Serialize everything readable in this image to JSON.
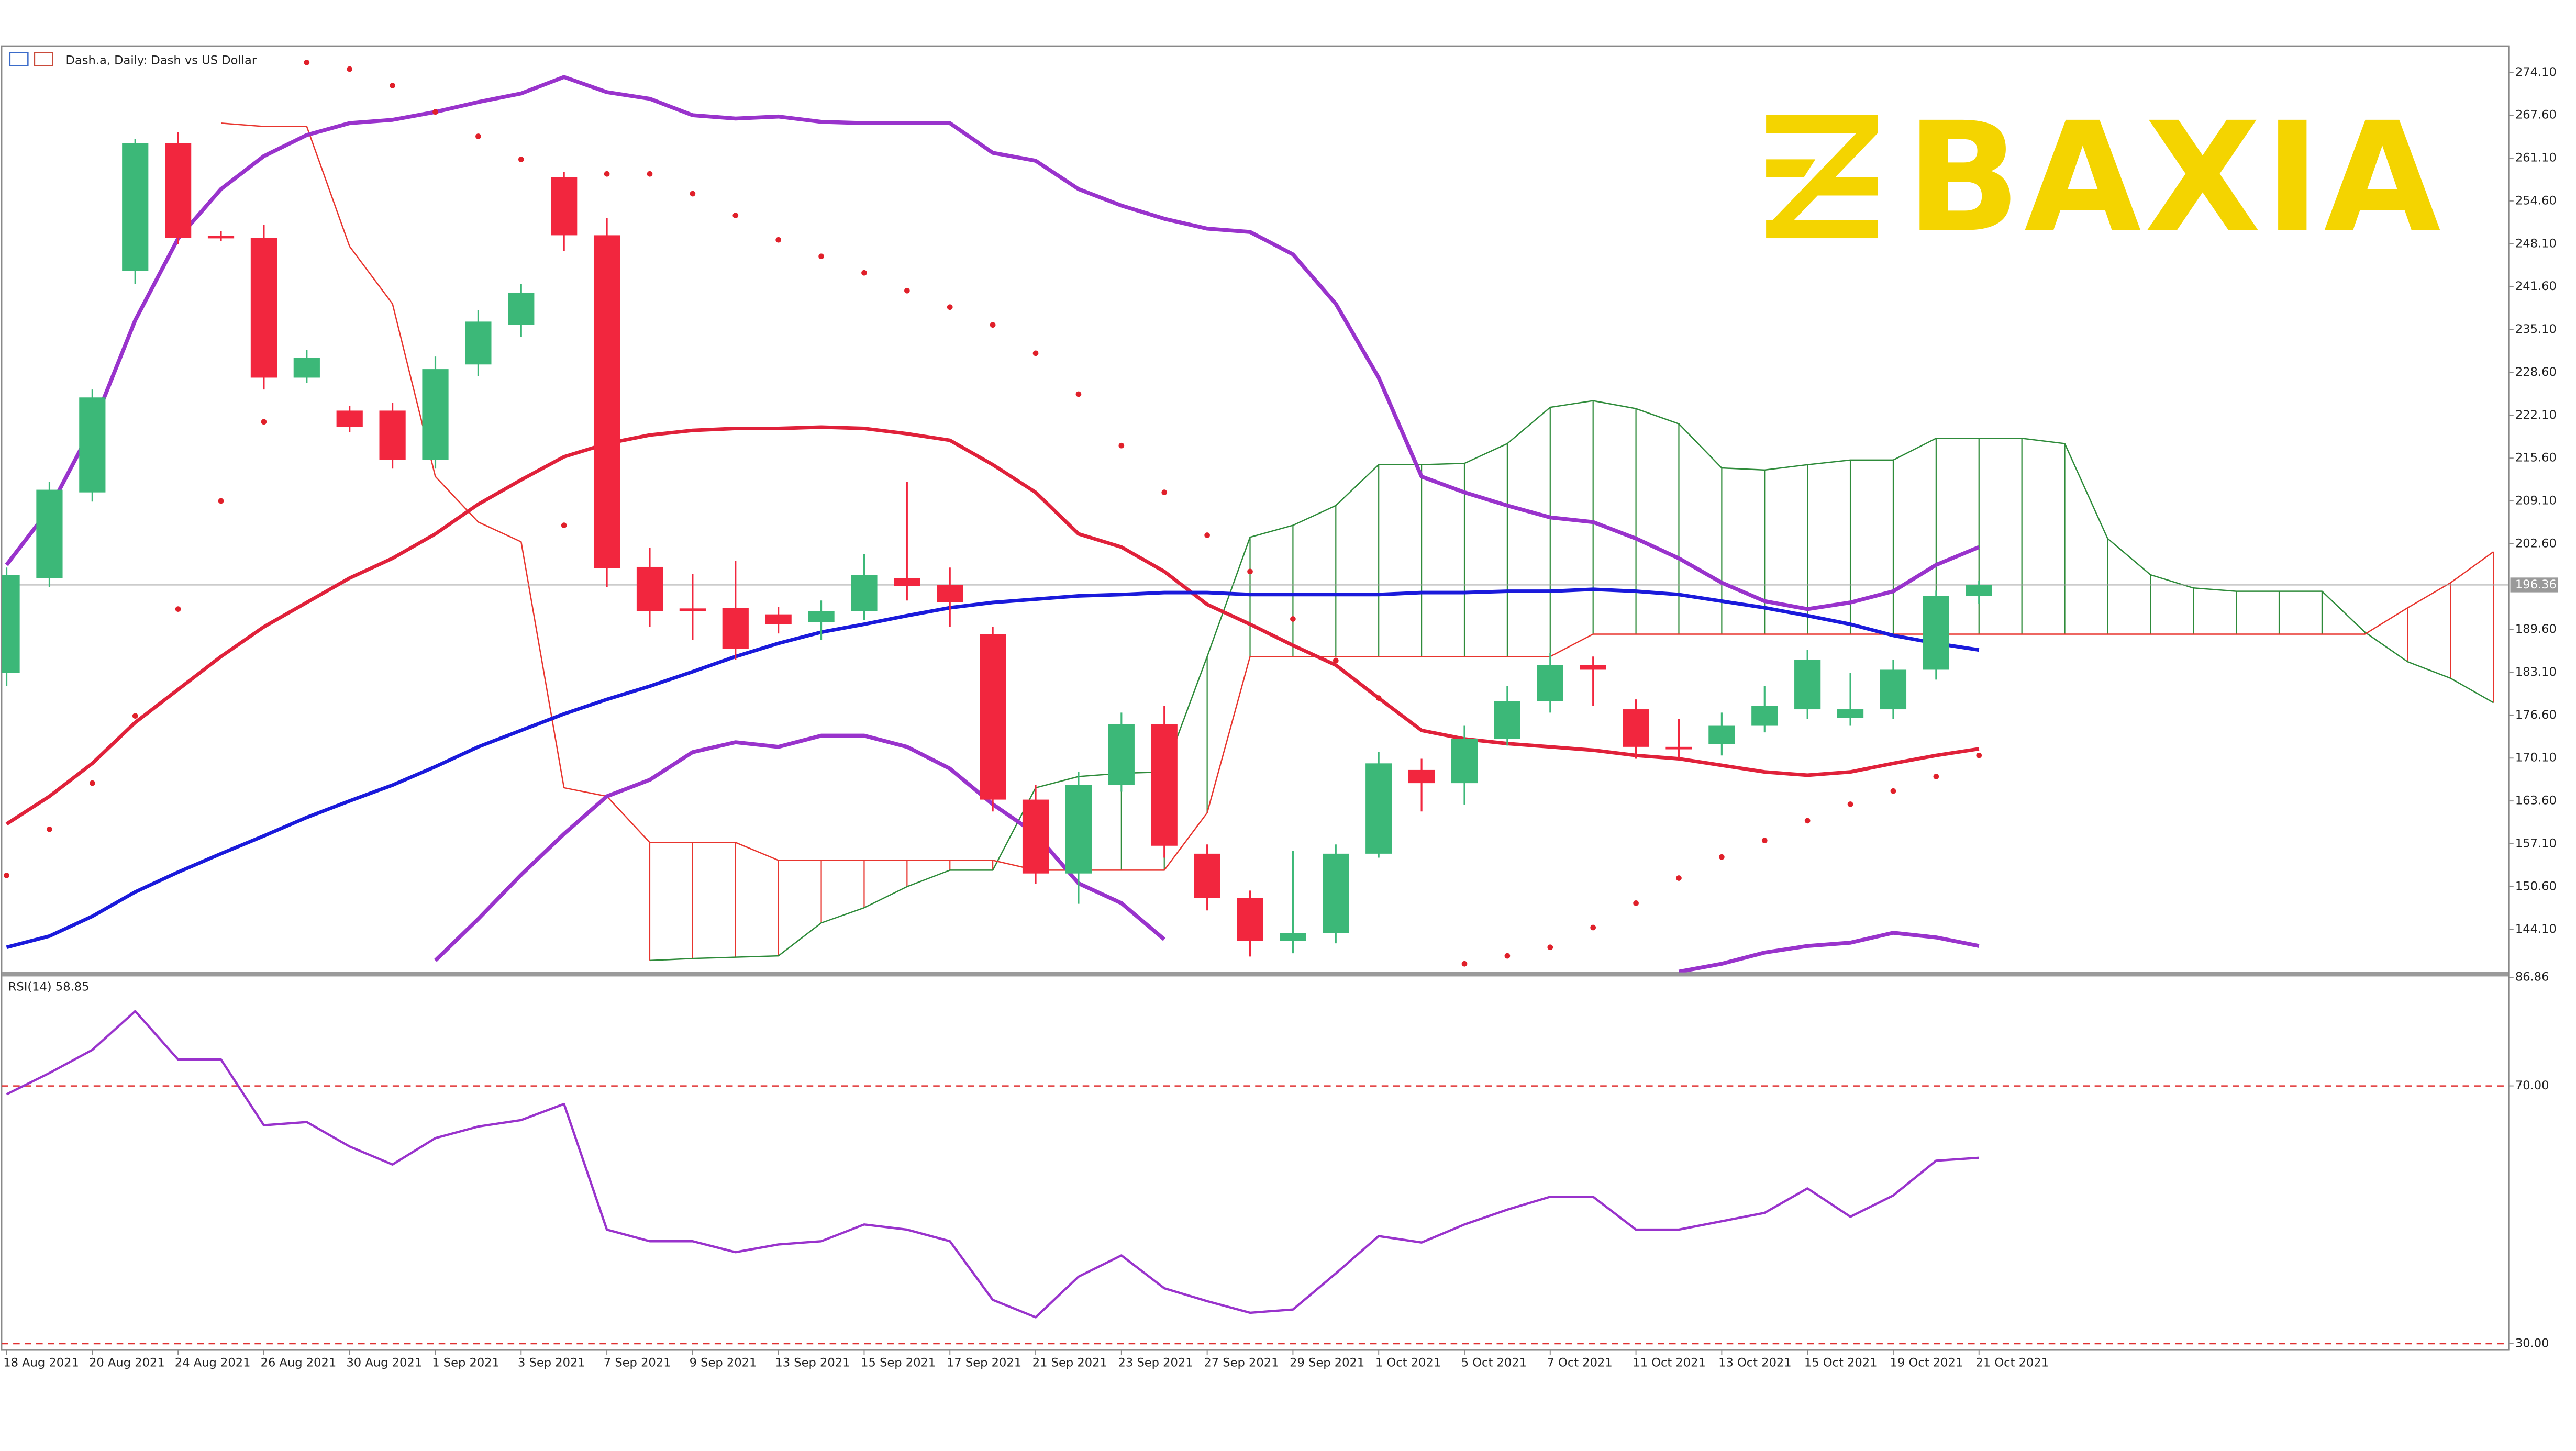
{
  "chart_data": {
    "type": "candlestick",
    "title": "Dash.a, Daily:  Dash vs US Dollar",
    "logo": "BAXIA",
    "categories": [
      "18 Aug 2021",
      null,
      "20 Aug 2021",
      null,
      "24 Aug 2021",
      null,
      "26 Aug 2021",
      null,
      "30 Aug 2021",
      null,
      "1 Sep 2021",
      null,
      "3 Sep 2021",
      null,
      "7 Sep 2021",
      null,
      "9 Sep 2021",
      null,
      "13 Sep 2021",
      null,
      "15 Sep 2021",
      null,
      "17 Sep 2021",
      null,
      "21 Sep 2021",
      null,
      "23 Sep 2021",
      null,
      "27 Sep 2021",
      null,
      "29 Sep 2021",
      null,
      "1 Oct 2021",
      null,
      "5 Oct 2021",
      null,
      "7 Oct 2021",
      null,
      "11 Oct 2021",
      null,
      "13 Oct 2021",
      null,
      "15 Oct 2021",
      null,
      "19 Oct 2021",
      null,
      "21 Oct 2021",
      null,
      null,
      null,
      null,
      null,
      null,
      null,
      null,
      null,
      null,
      null,
      null
    ],
    "candles": {
      "up_color": "#3cb878",
      "down_color": "#f2263e",
      "open": [
        183.0,
        197.4,
        210.4,
        244.0,
        263.4,
        249.3,
        249.0,
        227.8,
        222.8,
        222.8,
        215.3,
        229.8,
        235.8,
        258.2,
        249.4,
        199.1,
        192.8,
        192.9,
        191.9,
        190.7,
        192.4,
        197.4,
        196.4,
        188.9,
        163.8,
        152.6,
        166.0,
        175.2,
        155.6,
        148.9,
        142.4,
        143.6,
        155.6,
        168.3,
        166.3,
        173.0,
        178.7,
        184.2,
        177.5,
        171.8,
        172.2,
        175.0,
        177.5,
        176.2,
        177.5,
        183.5,
        194.7,
        null,
        null,
        null,
        null,
        null,
        null,
        null,
        null,
        null,
        null,
        null,
        null
      ],
      "high": [
        199,
        212,
        226,
        264,
        265,
        250,
        251,
        232,
        223.5,
        224,
        231,
        238,
        242,
        259,
        252,
        202,
        198,
        200,
        193,
        194,
        201,
        212,
        199,
        190,
        166,
        168,
        177,
        178,
        157,
        150,
        156,
        157,
        171,
        170,
        175,
        181,
        186,
        185.5,
        179,
        176,
        177,
        181,
        186.5,
        183,
        185,
        195.5,
        197,
        null,
        null,
        null,
        null,
        null,
        null,
        null,
        null,
        null,
        null,
        null,
        null
      ],
      "low": [
        181,
        196,
        209,
        242,
        248,
        248.5,
        226,
        227,
        219.5,
        214,
        214,
        228,
        234,
        247,
        196,
        190,
        188,
        185,
        189,
        188,
        191,
        194,
        190,
        162,
        151,
        148,
        165,
        155,
        147,
        140,
        140.5,
        142,
        155,
        162,
        163,
        172,
        177,
        178,
        170,
        170,
        170.5,
        174,
        176,
        175,
        176,
        182,
        193.5,
        null,
        null,
        null,
        null,
        null,
        null,
        null,
        null,
        null,
        null,
        null,
        null
      ],
      "close": [
        197.9,
        210.8,
        224.8,
        263.4,
        249.0,
        249.0,
        227.8,
        230.8,
        220.3,
        215.3,
        229.1,
        236.3,
        240.7,
        249.4,
        198.9,
        192.4,
        192.6,
        186.7,
        190.4,
        192.4,
        197.9,
        196.2,
        193.7,
        163.8,
        152.6,
        166.0,
        175.2,
        156.8,
        148.9,
        142.4,
        143.6,
        155.6,
        169.3,
        166.3,
        173.0,
        178.7,
        184.2,
        183.5,
        171.8,
        171.6,
        175.0,
        178.0,
        185.0,
        177.5,
        183.5,
        194.7,
        196.4,
        null,
        null,
        null,
        null,
        null,
        null,
        null,
        null,
        null,
        null,
        null,
        null
      ]
    },
    "ichimoku": {
      "span_a": {
        "color": "#2e8b3a",
        "values": [
          null,
          null,
          null,
          null,
          null,
          null,
          null,
          null,
          null,
          null,
          null,
          null,
          null,
          null,
          null,
          139.4,
          139.7,
          139.9,
          140.1,
          145.1,
          147.4,
          150.6,
          153.1,
          153.1,
          165.6,
          167.3,
          167.8,
          168.0,
          185.5,
          203.6,
          205.4,
          208.4,
          214.6,
          214.6,
          214.8,
          217.8,
          223.3,
          224.3,
          223.1,
          220.8,
          214.1,
          213.8,
          214.6,
          215.3,
          215.3,
          218.6,
          218.6,
          218.6,
          217.8,
          203.4,
          197.9,
          195.9,
          195.4,
          195.4,
          195.4,
          189.2,
          184.7,
          182.2,
          178.5
        ]
      },
      "span_b": {
        "color": "#e8352e",
        "values": [
          null,
          null,
          null,
          null,
          null,
          266.4,
          265.9,
          265.9,
          247.7,
          239.0,
          212.8,
          205.9,
          202.9,
          165.6,
          164.3,
          157.3,
          157.3,
          157.3,
          154.6,
          154.6,
          154.6,
          154.6,
          154.6,
          154.6,
          153.1,
          153.1,
          153.1,
          153.1,
          161.8,
          185.5,
          185.5,
          185.5,
          185.5,
          185.5,
          185.5,
          185.5,
          185.5,
          188.9,
          188.9,
          188.9,
          188.9,
          188.9,
          188.9,
          188.9,
          188.9,
          188.9,
          188.9,
          188.9,
          188.9,
          188.9,
          188.9,
          188.9,
          188.9,
          188.9,
          188.9,
          188.9,
          192.9,
          196.7,
          201.4
        ]
      }
    },
    "moving_averages": [
      {
        "color": "#e0213a",
        "values": [
          160.1,
          164.3,
          169.3,
          175.5,
          180.5,
          185.5,
          190.0,
          193.7,
          197.4,
          200.4,
          204.1,
          208.6,
          212.3,
          215.8,
          217.8,
          219.1,
          219.8,
          220.1,
          220.1,
          220.3,
          220.1,
          219.3,
          218.3,
          214.6,
          210.4,
          204.1,
          202.1,
          198.4,
          193.4,
          190.4,
          187.2,
          184.2,
          179.2,
          174.3,
          173.0,
          172.3,
          171.8,
          171.3,
          170.5,
          170.0,
          169.0,
          168.0,
          167.5,
          168.0,
          169.3,
          170.5,
          171.5,
          null,
          null,
          null,
          null,
          null,
          null,
          null,
          null,
          null,
          null,
          null,
          null
        ]
      },
      {
        "color": "#1a1adb",
        "values": [
          141.4,
          143.1,
          146.1,
          149.8,
          152.8,
          155.6,
          158.3,
          161.1,
          163.6,
          166.0,
          168.8,
          171.8,
          174.3,
          176.8,
          179.0,
          181.0,
          183.2,
          185.5,
          187.5,
          189.2,
          190.4,
          191.7,
          192.9,
          193.7,
          194.2,
          194.7,
          194.9,
          195.2,
          195.2,
          194.9,
          194.9,
          194.9,
          194.9,
          195.2,
          195.2,
          195.4,
          195.4,
          195.7,
          195.4,
          194.9,
          193.9,
          192.9,
          191.7,
          190.4,
          188.7,
          187.5,
          186.5,
          null,
          null,
          null,
          null,
          null,
          null,
          null,
          null,
          null,
          null,
          null,
          null
        ]
      }
    ],
    "bollinger": {
      "color": "#9933cc",
      "upper": [
        199.4,
        207.9,
        220.3,
        236.5,
        248.9,
        256.4,
        261.4,
        264.6,
        266.4,
        266.9,
        268.1,
        269.6,
        270.9,
        273.4,
        271.1,
        270.1,
        267.6,
        267.1,
        267.4,
        266.6,
        266.4,
        266.4,
        266.4,
        261.9,
        260.7,
        256.4,
        253.9,
        251.9,
        250.4,
        249.9,
        246.5,
        239.0,
        227.8,
        212.8,
        210.4,
        208.4,
        206.6,
        205.9,
        203.4,
        200.4,
        196.7,
        193.9,
        192.7,
        193.7,
        195.4,
        199.4,
        202.1,
        null,
        null,
        null,
        null,
        null,
        null,
        null,
        null,
        null,
        null,
        null,
        null
      ],
      "lower": [
        null,
        null,
        null,
        null,
        null,
        null,
        null,
        null,
        null,
        null,
        139.4,
        145.7,
        152.4,
        158.6,
        164.3,
        166.8,
        171.0,
        172.5,
        171.8,
        173.5,
        173.5,
        171.8,
        168.5,
        163.1,
        158.6,
        151.1,
        148.1,
        142.6,
        null,
        null,
        null,
        null,
        null,
        null,
        null,
        null,
        null,
        null,
        null,
        137.7,
        138.9,
        140.6,
        141.6,
        142.1,
        143.6,
        142.9,
        141.6,
        null,
        null,
        null,
        null,
        null,
        null,
        null,
        null,
        null,
        null,
        null,
        null
      ]
    },
    "sar": {
      "color": "#e0202a",
      "values": [
        152.3,
        159.3,
        166.3,
        176.5,
        192.7,
        209.1,
        221.1,
        275.6,
        274.6,
        272.1,
        268.1,
        264.4,
        260.9,
        205.4,
        258.7,
        258.7,
        255.7,
        252.4,
        248.7,
        246.2,
        243.7,
        241.0,
        238.5,
        235.8,
        231.5,
        225.3,
        217.5,
        210.4,
        203.9,
        198.4,
        191.2,
        184.9,
        179.2,
        null,
        138.9,
        140.1,
        141.4,
        144.4,
        148.1,
        151.9,
        155.1,
        157.6,
        160.6,
        163.1,
        165.1,
        167.3,
        170.5,
        null,
        null,
        null,
        null,
        null,
        null,
        null,
        null,
        null,
        null,
        null,
        null
      ]
    },
    "last_price": 196.36,
    "ylim": [
      137.6,
      278.1
    ],
    "yticks": [
      {
        "value": 274.1,
        "label": "274.10"
      },
      {
        "value": 267.6,
        "label": "267.60"
      },
      {
        "value": 261.1,
        "label": "261.10"
      },
      {
        "value": 254.6,
        "label": "254.60"
      },
      {
        "value": 248.1,
        "label": "248.10"
      },
      {
        "value": 241.6,
        "label": "241.60"
      },
      {
        "value": 235.1,
        "label": "235.10"
      },
      {
        "value": 228.6,
        "label": "228.60"
      },
      {
        "value": 222.1,
        "label": "222.10"
      },
      {
        "value": 215.6,
        "label": "215.60"
      },
      {
        "value": 209.1,
        "label": "209.10"
      },
      {
        "value": 202.6,
        "label": "202.60"
      },
      {
        "value": 189.6,
        "label": "189.60"
      },
      {
        "value": 183.1,
        "label": "183.10"
      },
      {
        "value": 176.6,
        "label": "176.60"
      },
      {
        "value": 170.1,
        "label": "170.10"
      },
      {
        "value": 163.6,
        "label": "163.60"
      },
      {
        "value": 157.1,
        "label": "157.10"
      },
      {
        "value": 150.6,
        "label": "150.60"
      },
      {
        "value": 144.1,
        "label": "144.10"
      }
    ],
    "rsi": {
      "label": "RSI(14) 58.85",
      "color": "#9933cc",
      "level_color": "#e03030",
      "values": [
        68.7,
        72.0,
        75.6,
        81.6,
        74.1,
        74.1,
        63.9,
        64.4,
        60.6,
        57.8,
        61.9,
        63.7,
        64.7,
        67.2,
        47.7,
        45.9,
        45.9,
        44.2,
        45.4,
        45.9,
        48.5,
        47.7,
        45.9,
        36.8,
        34.1,
        40.4,
        43.7,
        38.6,
        36.6,
        34.8,
        35.3,
        40.9,
        46.7,
        45.7,
        48.5,
        50.8,
        52.8,
        52.8,
        47.7,
        47.7,
        49.0,
        50.3,
        54.1,
        49.7,
        53.0,
        58.4,
        58.85,
        null,
        null,
        null,
        null,
        null,
        null,
        null,
        null,
        null,
        null,
        null,
        null
      ],
      "ylim": [
        29.0,
        86.86
      ],
      "yticks": [
        86.86,
        {
          "value": 70,
          "label": "70.00"
        },
        {
          "value": 30,
          "label": "30.00"
        }
      ]
    }
  }
}
